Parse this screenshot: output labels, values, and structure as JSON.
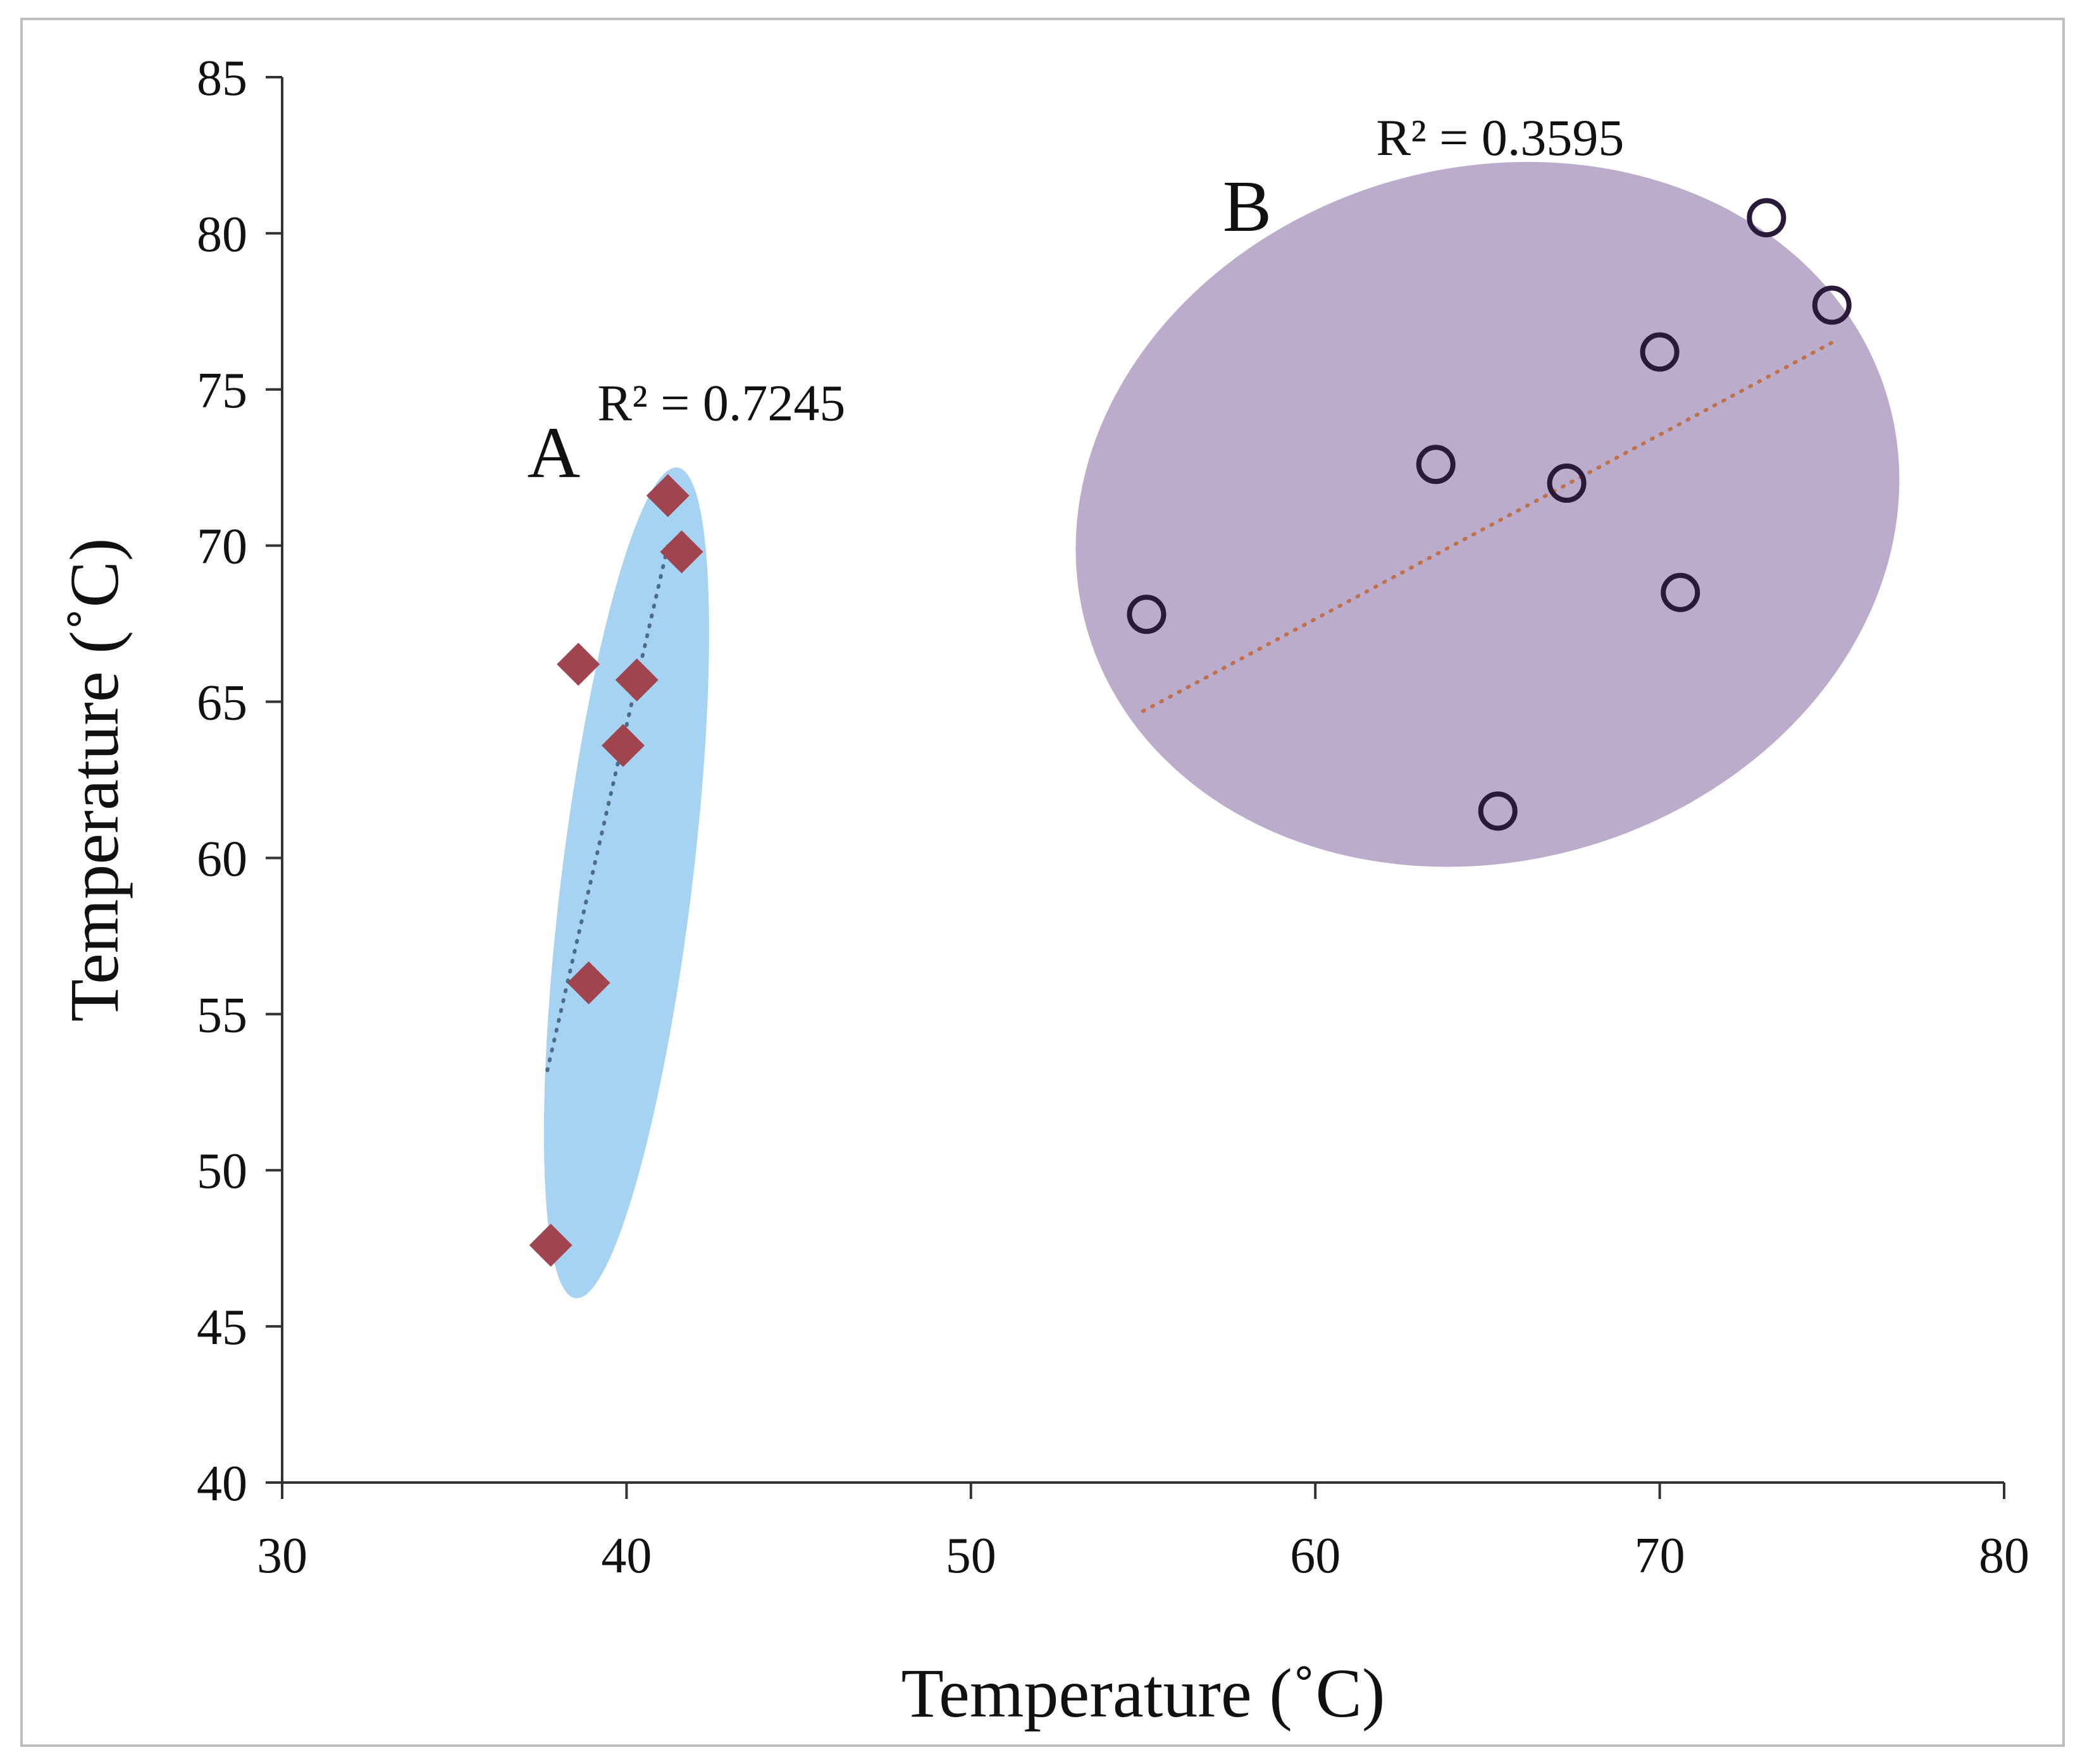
{
  "chart_data": {
    "type": "scatter",
    "xlabel": "Temperature (˚C)",
    "ylabel": "Temperature (˚C)",
    "xlim": [
      30,
      80
    ],
    "ylim": [
      40,
      85
    ],
    "xticks": [
      "30",
      "40",
      "50",
      "60",
      "70",
      "80"
    ],
    "yticks": [
      "40",
      "45",
      "50",
      "55",
      "60",
      "65",
      "70",
      "75",
      "80",
      "85"
    ],
    "grid": false,
    "series": [
      {
        "label": "A",
        "r2_text": "R² = 0.7245",
        "marker": "diamond",
        "marker_color": "#a0454f",
        "ellipse_color": "#a7d3f2",
        "trend_color": "#4d6d86",
        "trendline": {
          "x": [
            37.7,
            41.2
          ],
          "y": [
            53.2,
            70.0
          ]
        },
        "ellipse": {
          "cx": 40.0,
          "cy": 59.2,
          "rx": 1.9,
          "ry": 13.4,
          "rotation_deg": 7
        },
        "points": [
          {
            "x": 37.8,
            "y": 47.6
          },
          {
            "x": 38.9,
            "y": 56.0
          },
          {
            "x": 38.6,
            "y": 66.2
          },
          {
            "x": 39.9,
            "y": 63.6
          },
          {
            "x": 40.3,
            "y": 65.7
          },
          {
            "x": 41.2,
            "y": 71.6
          },
          {
            "x": 41.6,
            "y": 69.8
          }
        ]
      },
      {
        "label": "B",
        "r2_text": "R² = 0.3595",
        "marker": "open-circle",
        "marker_color": "#2a1a3a",
        "ellipse_color": "#bbaccc",
        "trend_color": "#c0714a",
        "trendline": {
          "x": [
            55.0,
            75.0
          ],
          "y": [
            64.7,
            76.5
          ]
        },
        "ellipse": {
          "cx": 65.0,
          "cy": 71.0,
          "rx": 12.1,
          "ry": 11.1,
          "rotation_deg": -16
        },
        "points": [
          {
            "x": 55.1,
            "y": 67.8
          },
          {
            "x": 63.5,
            "y": 72.6
          },
          {
            "x": 65.3,
            "y": 61.5
          },
          {
            "x": 67.3,
            "y": 72.0
          },
          {
            "x": 70.0,
            "y": 76.2
          },
          {
            "x": 70.6,
            "y": 68.5
          },
          {
            "x": 73.1,
            "y": 80.5
          },
          {
            "x": 75.0,
            "y": 77.7
          }
        ]
      }
    ]
  }
}
